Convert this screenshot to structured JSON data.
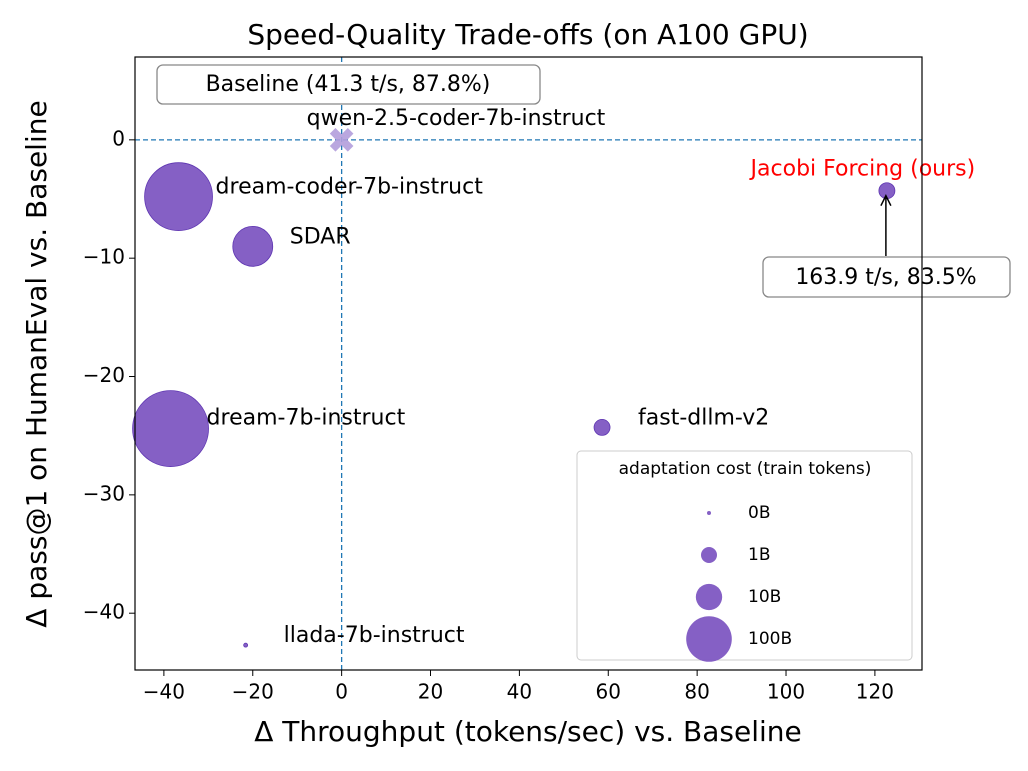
{
  "chart_data": {
    "type": "scatter",
    "title": "Speed-Quality Trade-offs (on A100 GPU)",
    "x_label": "Δ Throughput (tokens/sec) vs. Baseline",
    "y_label": "Δ pass@1 on HumanEval vs. Baseline",
    "xlim": [
      -46.5,
      130.6
    ],
    "ylim": [
      -44.8,
      7.0
    ],
    "xticks": [
      {
        "value": -40,
        "label": "−40"
      },
      {
        "value": -20,
        "label": "−20"
      },
      0,
      20,
      40,
      60,
      80,
      100,
      120
    ],
    "yticks": [
      {
        "value": -40,
        "label": "−40"
      },
      {
        "value": -30,
        "label": "−30"
      },
      {
        "value": -20,
        "label": "−20"
      },
      {
        "value": -10,
        "label": "−10"
      },
      0
    ],
    "reference_lines": {
      "x": 0,
      "y": 0,
      "color": "#1f77b4"
    },
    "points": [
      {
        "name": "qwen-2.5-coder-7b-instruct",
        "x": 0,
        "y": 0,
        "size": 0,
        "marker": "x",
        "color": "#b39ddb",
        "label_color": "#000000"
      },
      {
        "name": "dream-coder-7b-instruct",
        "x": -36.7,
        "y": -4.8,
        "size": 490,
        "marker": "o",
        "color": "#7e57c2",
        "label_color": "#000000"
      },
      {
        "name": "SDAR",
        "x": -20.0,
        "y": -9.0,
        "size": 58,
        "marker": "o",
        "color": "#7e57c2",
        "label_color": "#000000"
      },
      {
        "name": "dream-7b-instruct",
        "x": -38.5,
        "y": -24.4,
        "size": 760,
        "marker": "o",
        "color": "#7e57c2",
        "label_color": "#000000"
      },
      {
        "name": "fast-dllm-v2",
        "x": 58.6,
        "y": -24.3,
        "size": 1,
        "marker": "o",
        "color": "#7e57c2",
        "label_color": "#000000"
      },
      {
        "name": "llada-7b-instruct",
        "x": -21.6,
        "y": -42.7,
        "size": 0,
        "marker": "o",
        "color": "#7e57c2",
        "label_color": "#000000"
      },
      {
        "name": "Jacobi Forcing (ours)",
        "x": 122.7,
        "y": -4.3,
        "size": 1,
        "marker": "o",
        "color": "#7e57c2",
        "label_color": "#ff0000"
      }
    ],
    "annotations": [
      "Baseline (41.3 t/s, 87.8%)",
      "163.9 t/s, 83.5%"
    ],
    "legend": {
      "title": "adaptation cost (train tokens)",
      "color": "#7e57c2",
      "items": [
        {
          "value": 0,
          "label": "0B"
        },
        {
          "value": 1,
          "label": "1B"
        },
        {
          "value": 10,
          "label": "10B"
        },
        {
          "value": 100,
          "label": "100B"
        }
      ]
    }
  }
}
